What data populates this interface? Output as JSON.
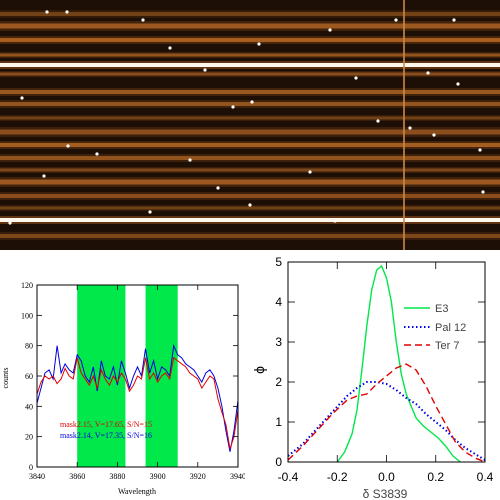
{
  "figure": {
    "image": {
      "description_colors": {
        "bg": "#1c0e04",
        "trace": "#e07a2a",
        "bright": "#ffffff"
      }
    },
    "colors": {
      "green": "#00e84a",
      "red": "#e00000",
      "blue": "#0000e0"
    }
  },
  "chart_data": [
    {
      "type": "line",
      "xlabel": "Wavelength",
      "ylabel": "counts",
      "xlim": [
        3840,
        3940
      ],
      "ylim": [
        0,
        120
      ],
      "x_ticks": [
        "3840",
        "3860",
        "3880",
        "3900",
        "3920",
        "3940"
      ],
      "y_ticks": [
        "0",
        "20",
        "40",
        "60",
        "80",
        "100",
        "120"
      ],
      "shaded_bands": [
        [
          3860,
          3884
        ],
        [
          3894,
          3910
        ]
      ],
      "series": [
        {
          "name": "mask2.15, V=17.65, S/N=15",
          "color": "#e00000",
          "x": [
            3840,
            3842,
            3844,
            3846,
            3848,
            3850,
            3852,
            3854,
            3856,
            3858,
            3860,
            3862,
            3864,
            3866,
            3868,
            3870,
            3872,
            3874,
            3876,
            3878,
            3880,
            3882,
            3884,
            3886,
            3888,
            3890,
            3892,
            3894,
            3896,
            3898,
            3900,
            3902,
            3904,
            3906,
            3908,
            3910,
            3912,
            3914,
            3916,
            3918,
            3920,
            3922,
            3924,
            3926,
            3928,
            3930,
            3932,
            3934,
            3936,
            3938,
            3940
          ],
          "values": [
            48,
            56,
            60,
            58,
            60,
            55,
            58,
            65,
            60,
            58,
            72,
            62,
            58,
            54,
            60,
            52,
            64,
            58,
            54,
            60,
            56,
            62,
            58,
            50,
            54,
            60,
            58,
            72,
            58,
            62,
            56,
            60,
            62,
            58,
            72,
            70,
            68,
            66,
            62,
            60,
            58,
            52,
            56,
            60,
            58,
            45,
            36,
            28,
            12,
            20,
            38
          ]
        },
        {
          "name": "mask2.14, V=17.35, S/N=16",
          "color": "#0000e0",
          "x": [
            3840,
            3842,
            3844,
            3846,
            3848,
            3850,
            3852,
            3854,
            3856,
            3858,
            3860,
            3862,
            3864,
            3866,
            3868,
            3870,
            3872,
            3874,
            3876,
            3878,
            3880,
            3882,
            3884,
            3886,
            3888,
            3890,
            3892,
            3894,
            3896,
            3898,
            3900,
            3902,
            3904,
            3906,
            3908,
            3910,
            3912,
            3914,
            3916,
            3918,
            3920,
            3922,
            3924,
            3926,
            3928,
            3930,
            3932,
            3934,
            3936,
            3938,
            3940
          ],
          "values": [
            42,
            52,
            62,
            64,
            58,
            80,
            62,
            68,
            64,
            62,
            74,
            70,
            60,
            56,
            66,
            50,
            70,
            60,
            58,
            66,
            54,
            70,
            62,
            52,
            60,
            66,
            60,
            78,
            62,
            70,
            58,
            66,
            64,
            60,
            80,
            74,
            72,
            68,
            66,
            64,
            60,
            56,
            62,
            64,
            60,
            52,
            40,
            24,
            10,
            24,
            44
          ]
        }
      ]
    },
    {
      "type": "line",
      "xlabel": "δ S3839",
      "ylabel": "ϕ",
      "xlim": [
        -0.4,
        0.4
      ],
      "ylim": [
        0,
        5
      ],
      "x_ticks": [
        "-0.4",
        "-0.2",
        "0.0",
        "0.2",
        "0.4"
      ],
      "y_ticks": [
        "0",
        "1",
        "2",
        "3",
        "4",
        "5"
      ],
      "legend": "center-right",
      "series": [
        {
          "name": "E3",
          "color": "#00e84a",
          "style": "solid",
          "x": [
            -0.2,
            -0.17,
            -0.14,
            -0.12,
            -0.1,
            -0.08,
            -0.06,
            -0.04,
            -0.02,
            0.0,
            0.02,
            0.04,
            0.06,
            0.08,
            0.1,
            0.12,
            0.15,
            0.18,
            0.21,
            0.24,
            0.27,
            0.3
          ],
          "values": [
            0.0,
            0.25,
            0.7,
            1.3,
            2.3,
            3.4,
            4.3,
            4.8,
            4.9,
            4.6,
            4.0,
            3.0,
            2.2,
            1.7,
            1.4,
            1.1,
            0.9,
            0.75,
            0.6,
            0.4,
            0.15,
            0.0
          ]
        },
        {
          "name": "Pal 12",
          "color": "#0000e0",
          "style": "dotted",
          "x": [
            -0.4,
            -0.34,
            -0.28,
            -0.22,
            -0.16,
            -0.12,
            -0.08,
            -0.04,
            0.0,
            0.04,
            0.08,
            0.12,
            0.16,
            0.2,
            0.24,
            0.28,
            0.32,
            0.36,
            0.4
          ],
          "values": [
            0.15,
            0.45,
            0.85,
            1.25,
            1.65,
            1.85,
            2.0,
            2.0,
            1.95,
            1.8,
            1.6,
            1.45,
            1.2,
            1.0,
            0.8,
            0.55,
            0.35,
            0.2,
            0.05
          ]
        },
        {
          "name": "Ter 7",
          "color": "#e00000",
          "style": "dashed",
          "x": [
            -0.4,
            -0.34,
            -0.28,
            -0.22,
            -0.16,
            -0.12,
            -0.08,
            -0.04,
            0.0,
            0.04,
            0.08,
            0.12,
            0.16,
            0.2,
            0.24,
            0.28,
            0.32,
            0.36,
            0.4
          ],
          "values": [
            0.05,
            0.4,
            0.8,
            1.2,
            1.55,
            1.65,
            1.7,
            1.95,
            2.15,
            2.35,
            2.45,
            2.3,
            1.9,
            1.4,
            0.95,
            0.5,
            0.25,
            0.1,
            0.0
          ]
        }
      ]
    }
  ]
}
